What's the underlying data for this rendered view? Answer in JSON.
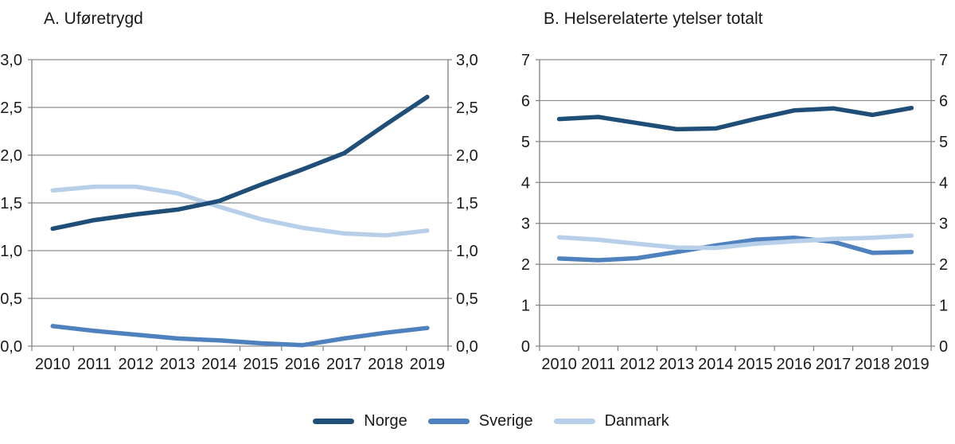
{
  "figure": {
    "background": "#ffffff",
    "text_color": "#1a1a1a",
    "axis_color": "#808080",
    "grid_color": "#8c8c8c"
  },
  "chart_data": [
    {
      "type": "line",
      "title": "A. Uføretrygd",
      "categories": [
        "2010",
        "2011",
        "2012",
        "2013",
        "2014",
        "2015",
        "2016",
        "2017",
        "2018",
        "2019"
      ],
      "ylim": [
        0,
        3
      ],
      "ystep": 0.5,
      "y_tick_labels_top_to_bottom": [
        "3,0",
        "2,5",
        "2,0",
        "1,5",
        "1,0",
        "0,5",
        "0,0"
      ],
      "y_axis_sides": "both",
      "grid": true,
      "series": [
        {
          "name": "Norge",
          "color": "#1F4E79",
          "values": [
            1.23,
            1.32,
            1.38,
            1.43,
            1.52,
            1.69,
            1.85,
            2.02,
            2.32,
            2.61
          ]
        },
        {
          "name": "Sverige",
          "color": "#4E81BD",
          "values": [
            0.21,
            0.16,
            0.12,
            0.08,
            0.06,
            0.03,
            0.01,
            0.08,
            0.14,
            0.19
          ]
        },
        {
          "name": "Danmark",
          "color": "#B8CFE9",
          "values": [
            1.63,
            1.67,
            1.67,
            1.6,
            1.46,
            1.33,
            1.24,
            1.18,
            1.16,
            1.21
          ]
        }
      ]
    },
    {
      "type": "line",
      "title": "B. Helserelaterte ytelser totalt",
      "categories": [
        "2010",
        "2011",
        "2012",
        "2013",
        "2014",
        "2015",
        "2016",
        "2017",
        "2018",
        "2019"
      ],
      "ylim": [
        0,
        7
      ],
      "ystep": 1,
      "y_tick_labels_top_to_bottom": [
        "7",
        "6",
        "5",
        "4",
        "3",
        "2",
        "1",
        "0"
      ],
      "y_axis_sides": "both",
      "grid": true,
      "series": [
        {
          "name": "Norge",
          "color": "#1F4E79",
          "values": [
            5.55,
            5.6,
            5.45,
            5.3,
            5.32,
            5.55,
            5.76,
            5.81,
            5.65,
            5.82
          ]
        },
        {
          "name": "Sverige",
          "color": "#4E81BD",
          "values": [
            2.14,
            2.1,
            2.15,
            2.3,
            2.46,
            2.6,
            2.65,
            2.55,
            2.28,
            2.3
          ]
        },
        {
          "name": "Danmark",
          "color": "#B8CFE9",
          "values": [
            2.66,
            2.6,
            2.5,
            2.41,
            2.4,
            2.5,
            2.56,
            2.62,
            2.65,
            2.7
          ]
        }
      ]
    }
  ],
  "legend": {
    "position": "bottom",
    "items": [
      {
        "label": "Norge",
        "color": "#1F4E79"
      },
      {
        "label": "Sverige",
        "color": "#4E81BD"
      },
      {
        "label": "Danmark",
        "color": "#B8CFE9"
      }
    ]
  }
}
